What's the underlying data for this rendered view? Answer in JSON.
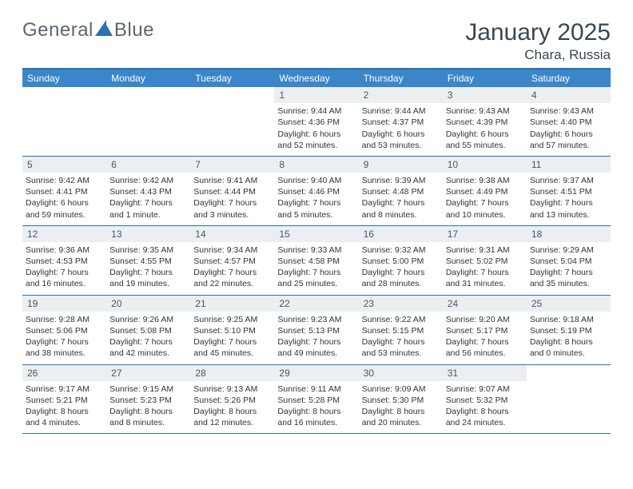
{
  "brand": {
    "word1": "General",
    "word2": "Blue"
  },
  "title": "January 2025",
  "location": "Chara, Russia",
  "colors": {
    "header_bg": "#3b86c8",
    "header_text": "#ffffff",
    "rule": "#2a72b5",
    "daynum_bg": "#eceff1",
    "body_text": "#333333",
    "title_text": "#3a4750",
    "logo_text": "#5c6670",
    "logo_shape": "#2a72b5"
  },
  "daysOfWeek": [
    "Sunday",
    "Monday",
    "Tuesday",
    "Wednesday",
    "Thursday",
    "Friday",
    "Saturday"
  ],
  "layout": {
    "firstDayOffset": 3,
    "numDays": 31,
    "cell_fontsize": 10.5,
    "daynum_fontsize": 12,
    "dow_fontsize": 12
  },
  "days": [
    {
      "n": 1,
      "sunrise": "9:44 AM",
      "sunset": "4:36 PM",
      "daylight": "6 hours and 52 minutes."
    },
    {
      "n": 2,
      "sunrise": "9:44 AM",
      "sunset": "4:37 PM",
      "daylight": "6 hours and 53 minutes."
    },
    {
      "n": 3,
      "sunrise": "9:43 AM",
      "sunset": "4:39 PM",
      "daylight": "6 hours and 55 minutes."
    },
    {
      "n": 4,
      "sunrise": "9:43 AM",
      "sunset": "4:40 PM",
      "daylight": "6 hours and 57 minutes."
    },
    {
      "n": 5,
      "sunrise": "9:42 AM",
      "sunset": "4:41 PM",
      "daylight": "6 hours and 59 minutes."
    },
    {
      "n": 6,
      "sunrise": "9:42 AM",
      "sunset": "4:43 PM",
      "daylight": "7 hours and 1 minute."
    },
    {
      "n": 7,
      "sunrise": "9:41 AM",
      "sunset": "4:44 PM",
      "daylight": "7 hours and 3 minutes."
    },
    {
      "n": 8,
      "sunrise": "9:40 AM",
      "sunset": "4:46 PM",
      "daylight": "7 hours and 5 minutes."
    },
    {
      "n": 9,
      "sunrise": "9:39 AM",
      "sunset": "4:48 PM",
      "daylight": "7 hours and 8 minutes."
    },
    {
      "n": 10,
      "sunrise": "9:38 AM",
      "sunset": "4:49 PM",
      "daylight": "7 hours and 10 minutes."
    },
    {
      "n": 11,
      "sunrise": "9:37 AM",
      "sunset": "4:51 PM",
      "daylight": "7 hours and 13 minutes."
    },
    {
      "n": 12,
      "sunrise": "9:36 AM",
      "sunset": "4:53 PM",
      "daylight": "7 hours and 16 minutes."
    },
    {
      "n": 13,
      "sunrise": "9:35 AM",
      "sunset": "4:55 PM",
      "daylight": "7 hours and 19 minutes."
    },
    {
      "n": 14,
      "sunrise": "9:34 AM",
      "sunset": "4:57 PM",
      "daylight": "7 hours and 22 minutes."
    },
    {
      "n": 15,
      "sunrise": "9:33 AM",
      "sunset": "4:58 PM",
      "daylight": "7 hours and 25 minutes."
    },
    {
      "n": 16,
      "sunrise": "9:32 AM",
      "sunset": "5:00 PM",
      "daylight": "7 hours and 28 minutes."
    },
    {
      "n": 17,
      "sunrise": "9:31 AM",
      "sunset": "5:02 PM",
      "daylight": "7 hours and 31 minutes."
    },
    {
      "n": 18,
      "sunrise": "9:29 AM",
      "sunset": "5:04 PM",
      "daylight": "7 hours and 35 minutes."
    },
    {
      "n": 19,
      "sunrise": "9:28 AM",
      "sunset": "5:06 PM",
      "daylight": "7 hours and 38 minutes."
    },
    {
      "n": 20,
      "sunrise": "9:26 AM",
      "sunset": "5:08 PM",
      "daylight": "7 hours and 42 minutes."
    },
    {
      "n": 21,
      "sunrise": "9:25 AM",
      "sunset": "5:10 PM",
      "daylight": "7 hours and 45 minutes."
    },
    {
      "n": 22,
      "sunrise": "9:23 AM",
      "sunset": "5:13 PM",
      "daylight": "7 hours and 49 minutes."
    },
    {
      "n": 23,
      "sunrise": "9:22 AM",
      "sunset": "5:15 PM",
      "daylight": "7 hours and 53 minutes."
    },
    {
      "n": 24,
      "sunrise": "9:20 AM",
      "sunset": "5:17 PM",
      "daylight": "7 hours and 56 minutes."
    },
    {
      "n": 25,
      "sunrise": "9:18 AM",
      "sunset": "5:19 PM",
      "daylight": "8 hours and 0 minutes."
    },
    {
      "n": 26,
      "sunrise": "9:17 AM",
      "sunset": "5:21 PM",
      "daylight": "8 hours and 4 minutes."
    },
    {
      "n": 27,
      "sunrise": "9:15 AM",
      "sunset": "5:23 PM",
      "daylight": "8 hours and 8 minutes."
    },
    {
      "n": 28,
      "sunrise": "9:13 AM",
      "sunset": "5:26 PM",
      "daylight": "8 hours and 12 minutes."
    },
    {
      "n": 29,
      "sunrise": "9:11 AM",
      "sunset": "5:28 PM",
      "daylight": "8 hours and 16 minutes."
    },
    {
      "n": 30,
      "sunrise": "9:09 AM",
      "sunset": "5:30 PM",
      "daylight": "8 hours and 20 minutes."
    },
    {
      "n": 31,
      "sunrise": "9:07 AM",
      "sunset": "5:32 PM",
      "daylight": "8 hours and 24 minutes."
    }
  ],
  "labels": {
    "sunrise": "Sunrise:",
    "sunset": "Sunset:",
    "daylight": "Daylight:"
  }
}
